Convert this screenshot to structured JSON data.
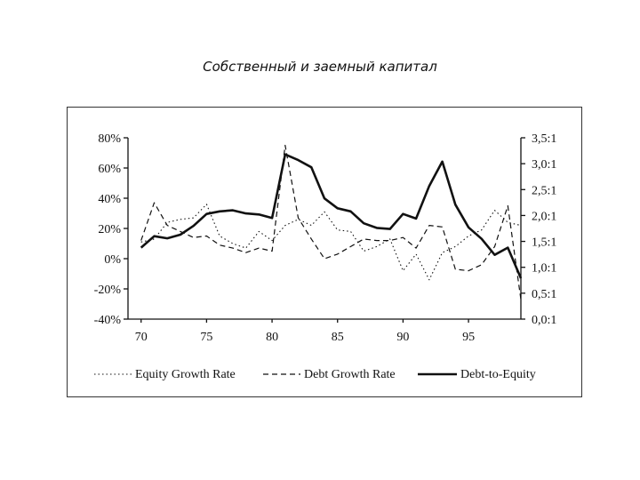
{
  "slide": {
    "title": "Собственный и заемный капитал"
  },
  "chart_data": {
    "type": "line",
    "title": "Собственный и заемный капитал",
    "x_ticks": [
      "70",
      "75",
      "80",
      "85",
      "90",
      "95"
    ],
    "x_tick_values": [
      70,
      75,
      80,
      85,
      90,
      95
    ],
    "xlim": [
      69,
      99
    ],
    "y_left_ticks": [
      "80%",
      "60%",
      "40%",
      "20%",
      "0%",
      "-20%",
      "-40%"
    ],
    "y_left_values": [
      80,
      60,
      40,
      20,
      0,
      -20,
      -40
    ],
    "y_left_lim": [
      -40,
      80
    ],
    "y_right_ticks": [
      "3,5:1",
      "3,0:1",
      "2,5:1",
      "2,0:1",
      "1,5:1",
      "1,0:1",
      "0,5:1",
      "0,0:1"
    ],
    "y_right_values": [
      3.5,
      3.0,
      2.5,
      2.0,
      1.5,
      1.0,
      0.5,
      0.0
    ],
    "y_right_lim": [
      0.0,
      3.5
    ],
    "series": [
      {
        "name": "Equity Growth Rate",
        "axis": "left",
        "style": "dotted",
        "x": [
          70,
          71,
          72,
          73,
          74,
          75,
          76,
          77,
          78,
          79,
          80,
          81,
          82,
          83,
          84,
          85,
          86,
          87,
          88,
          89,
          90,
          91,
          92,
          93,
          94,
          95,
          96,
          97,
          98,
          99
        ],
        "values": [
          11,
          13,
          24,
          26,
          27,
          36,
          15,
          10,
          7,
          18,
          12,
          22,
          26,
          22,
          31,
          19,
          18,
          5,
          8,
          13,
          -8,
          3,
          -14,
          4,
          8,
          15,
          19,
          32,
          24,
          22
        ]
      },
      {
        "name": "Debt Growth Rate",
        "axis": "left",
        "style": "dashed",
        "x": [
          70,
          71,
          72,
          73,
          74,
          75,
          76,
          77,
          78,
          79,
          80,
          81,
          82,
          83,
          84,
          85,
          86,
          87,
          88,
          89,
          90,
          91,
          92,
          93,
          94,
          95,
          96,
          97,
          98,
          99
        ],
        "values": [
          12,
          37,
          22,
          18,
          14,
          15,
          9,
          7,
          4,
          7,
          5,
          75,
          27,
          13,
          0,
          3,
          8,
          13,
          12,
          12,
          14,
          7,
          22,
          21,
          -7,
          -8,
          -4,
          8,
          35,
          -27
        ]
      },
      {
        "name": "Debt-to-Equity",
        "axis": "right",
        "style": "solid",
        "x": [
          70,
          71,
          72,
          73,
          74,
          75,
          76,
          77,
          78,
          79,
          80,
          81,
          82,
          83,
          84,
          85,
          86,
          87,
          88,
          89,
          90,
          91,
          92,
          93,
          94,
          95,
          96,
          97,
          98,
          99
        ],
        "values": [
          1.38,
          1.6,
          1.56,
          1.63,
          1.8,
          2.03,
          2.08,
          2.1,
          2.04,
          2.02,
          1.95,
          3.18,
          3.07,
          2.93,
          2.33,
          2.14,
          2.08,
          1.85,
          1.76,
          1.74,
          2.03,
          1.94,
          2.57,
          3.04,
          2.21,
          1.77,
          1.55,
          1.24,
          1.38,
          0.79
        ]
      }
    ],
    "legend": {
      "position": "bottom",
      "entries": [
        "Equity Growth Rate",
        "Debt Growth Rate",
        "Debt-to-Equity"
      ]
    }
  }
}
